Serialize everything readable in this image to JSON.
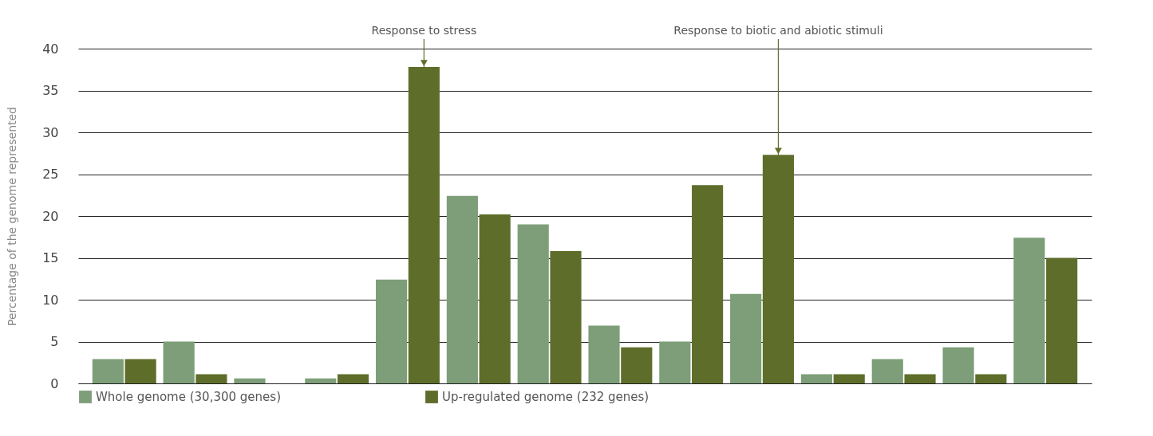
{
  "chart_data": {
    "type": "bar",
    "ylabel": "Percentage of the genome represented",
    "categories": [
      null,
      null,
      null,
      null,
      null,
      null,
      null,
      null,
      null,
      null,
      null,
      null,
      null,
      null
    ],
    "series": [
      {
        "name": "Whole genome (30,300 genes)",
        "color": "#7d9e78",
        "values": [
          2.9,
          5.0,
          0.6,
          0.6,
          12.4,
          22.4,
          19.0,
          6.9,
          5.0,
          10.7,
          1.1,
          2.9,
          4.3,
          17.4
        ]
      },
      {
        "name": "Up-regulated genome (232 genes)",
        "color": "#5e6e2a",
        "values": [
          2.9,
          1.1,
          0,
          1.1,
          37.8,
          20.2,
          15.8,
          4.3,
          23.7,
          27.3,
          1.1,
          1.1,
          1.1,
          15.0
        ]
      }
    ],
    "annotations": [
      {
        "text": "Response to stress",
        "y": 37.8
      },
      {
        "text": "Response to biotic and abiotic stimuli",
        "y": 27.3
      }
    ],
    "ylim": [
      0,
      40
    ],
    "yticks": [
      0,
      5,
      10,
      15,
      20,
      25,
      30,
      35,
      40
    ],
    "grid": "y",
    "legend": "bottom",
    "tick_labels": "y"
  }
}
